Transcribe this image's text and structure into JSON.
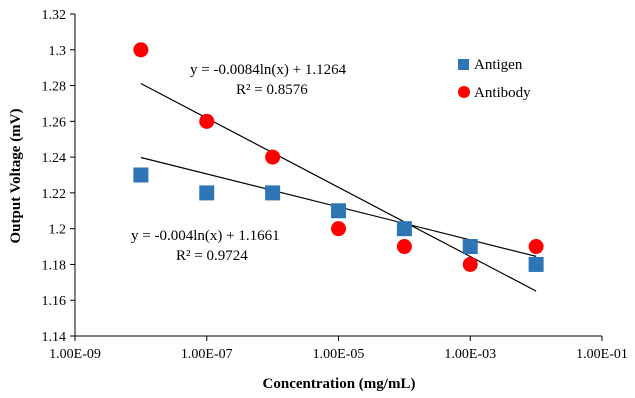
{
  "chart_data": {
    "type": "scatter",
    "xlabel": "Concentration (mg/mL)",
    "ylabel": "Output Voltage (mV)",
    "x_scale": "log",
    "xlim": [
      1e-09,
      0.1
    ],
    "ylim": [
      1.14,
      1.32
    ],
    "x_tick_values": [
      1e-09,
      1e-07,
      1e-05,
      0.001,
      0.1
    ],
    "x_tick_labels": [
      "1.00E-09",
      "1.00E-07",
      "1.00E-05",
      "1.00E-03",
      "1.00E-01"
    ],
    "y_tick_values": [
      1.14,
      1.16,
      1.18,
      1.2,
      1.22,
      1.24,
      1.26,
      1.28,
      1.3,
      1.32
    ],
    "y_tick_labels": [
      "1.14",
      "1.16",
      "1.18",
      "1.2",
      "1.22",
      "1.24",
      "1.26",
      "1.28",
      "1.3",
      "1.32"
    ],
    "grid": false,
    "legend_position": "top-right",
    "series": [
      {
        "name": "Antigen",
        "marker": "square",
        "color": "#2E75B6",
        "x": [
          1e-08,
          1e-07,
          1e-06,
          1e-05,
          0.0001,
          0.001,
          0.01
        ],
        "y": [
          1.23,
          1.22,
          1.22,
          1.21,
          1.2,
          1.19,
          1.18
        ],
        "trendline": {
          "type": "logarithmic",
          "a": -0.004,
          "b": 1.1661,
          "equation": "y = -0.004ln(x) + 1.1661",
          "r2": "R² = 0.9724"
        }
      },
      {
        "name": "Antibody",
        "marker": "circle",
        "color": "#FF0000",
        "x": [
          1e-08,
          1e-07,
          1e-06,
          1e-05,
          0.0001,
          0.001,
          0.01
        ],
        "y": [
          1.3,
          1.26,
          1.24,
          1.2,
          1.19,
          1.18,
          1.19
        ],
        "trendline": {
          "type": "logarithmic",
          "a": -0.0084,
          "b": 1.1264,
          "equation": "y = -0.0084ln(x) + 1.1264",
          "r2": "R² = 0.8576"
        }
      }
    ]
  }
}
